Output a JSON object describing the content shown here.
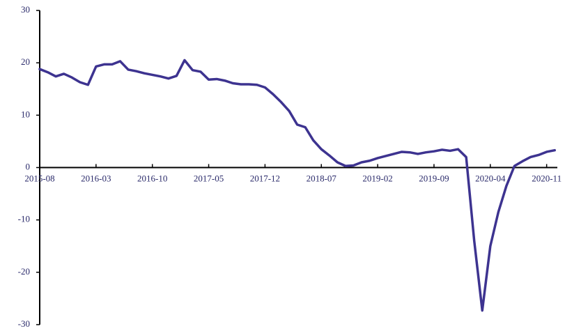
{
  "chart_data": {
    "type": "line",
    "categories": [
      "2015-08",
      null,
      null,
      null,
      null,
      null,
      null,
      "2016-03",
      null,
      null,
      null,
      null,
      null,
      null,
      "2016-10",
      null,
      null,
      null,
      null,
      null,
      null,
      "2017-05",
      null,
      null,
      null,
      null,
      null,
      null,
      "2017-12",
      null,
      null,
      null,
      null,
      null,
      null,
      "2018-07",
      null,
      null,
      null,
      null,
      null,
      null,
      "2019-02",
      null,
      null,
      null,
      null,
      null,
      null,
      "2019-09",
      null,
      null,
      null,
      null,
      null,
      null,
      "2020-04",
      null,
      null,
      null,
      null,
      null,
      null,
      "2020-11",
      null
    ],
    "series": [
      {
        "color": "#3d3390",
        "values": [
          18.8,
          18.2,
          17.4,
          17.9,
          17.2,
          16.3,
          15.8,
          19.3,
          19.7,
          19.7,
          20.3,
          18.7,
          18.4,
          18.0,
          17.7,
          17.4,
          17.0,
          17.5,
          20.5,
          18.6,
          18.3,
          16.8,
          16.9,
          16.6,
          16.1,
          15.9,
          15.9,
          15.8,
          15.3,
          14.0,
          12.5,
          10.8,
          8.2,
          7.7,
          5.2,
          3.5,
          2.3,
          1.0,
          0.3,
          0.4,
          1.0,
          1.3,
          1.8,
          2.2,
          2.6,
          3.0,
          2.9,
          2.6,
          2.9,
          3.1,
          3.4,
          3.2,
          3.5,
          2.0,
          -14,
          -27.3,
          -15,
          -8.5,
          -3.5,
          0.3,
          1.2,
          2.0,
          2.4,
          3.0,
          3.3
        ]
      }
    ],
    "ylim": [
      -30,
      30
    ],
    "yticks": [
      -30,
      -20,
      -10,
      0,
      10,
      20,
      30
    ],
    "grid": false
  }
}
